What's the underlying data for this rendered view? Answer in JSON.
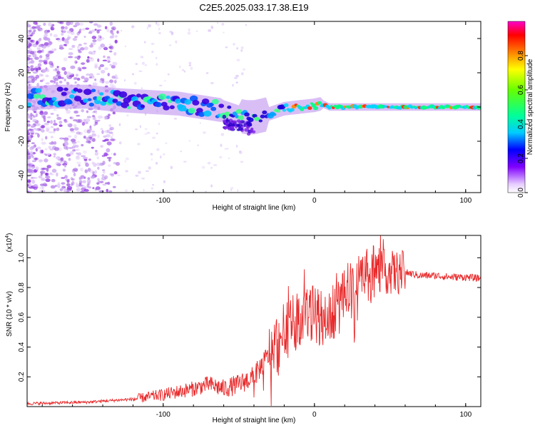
{
  "title": "C2E5.2025.033.17.38.E19",
  "chart_data": [
    {
      "type": "heatmap",
      "xlabel": "Height of straight line (km)",
      "ylabel": "Frequency (Hz)",
      "xlim": [
        -190,
        110
      ],
      "ylim": [
        -50,
        50
      ],
      "x_ticks": [
        -100,
        0,
        100
      ],
      "y_ticks": [
        -40,
        -20,
        0,
        20,
        40
      ],
      "colorbar": {
        "label": "Normalized spectral amplitude",
        "range": [
          0,
          1
        ],
        "ticks": [
          "0.0",
          "0.2",
          "0.4",
          "0.6",
          "0.8"
        ]
      },
      "ridge": {
        "x": [
          -190,
          -170,
          -150,
          -130,
          -110,
          -90,
          -75,
          -60,
          -50,
          -45,
          -40,
          -30,
          -20,
          -10,
          0,
          5,
          10,
          20,
          40,
          60,
          80,
          110
        ],
        "y": [
          5,
          6,
          6,
          4,
          3,
          2,
          0,
          -2,
          -5,
          -6,
          -6,
          -4,
          -1,
          0,
          1,
          2,
          0,
          0,
          0,
          0,
          0,
          0
        ]
      }
    },
    {
      "type": "line",
      "xlabel": "Height of straight line (km)",
      "ylabel": "SNR (10 * v/v)",
      "y_multiplier": "(x10",
      "y_multiplier_exp": "4",
      "y_multiplier_close": ")",
      "xlim": [
        -190,
        110
      ],
      "ylim": [
        0,
        1.15
      ],
      "x_ticks": [
        -100,
        0,
        100
      ],
      "y_ticks": [
        "0.2",
        "0.4",
        "0.6",
        "0.8",
        "1.0"
      ],
      "color": "#e8292a",
      "trend": {
        "x": [
          -190,
          -150,
          -120,
          -100,
          -80,
          -70,
          -60,
          -50,
          -40,
          -30,
          -20,
          -10,
          0,
          10,
          20,
          30,
          40,
          50,
          60,
          70,
          80,
          90,
          100,
          110
        ],
        "y": [
          0.02,
          0.03,
          0.05,
          0.08,
          0.12,
          0.15,
          0.12,
          0.15,
          0.2,
          0.35,
          0.5,
          0.6,
          0.62,
          0.6,
          0.72,
          0.85,
          0.92,
          0.9,
          0.9,
          0.88,
          0.88,
          0.87,
          0.87,
          0.86
        ]
      }
    }
  ]
}
